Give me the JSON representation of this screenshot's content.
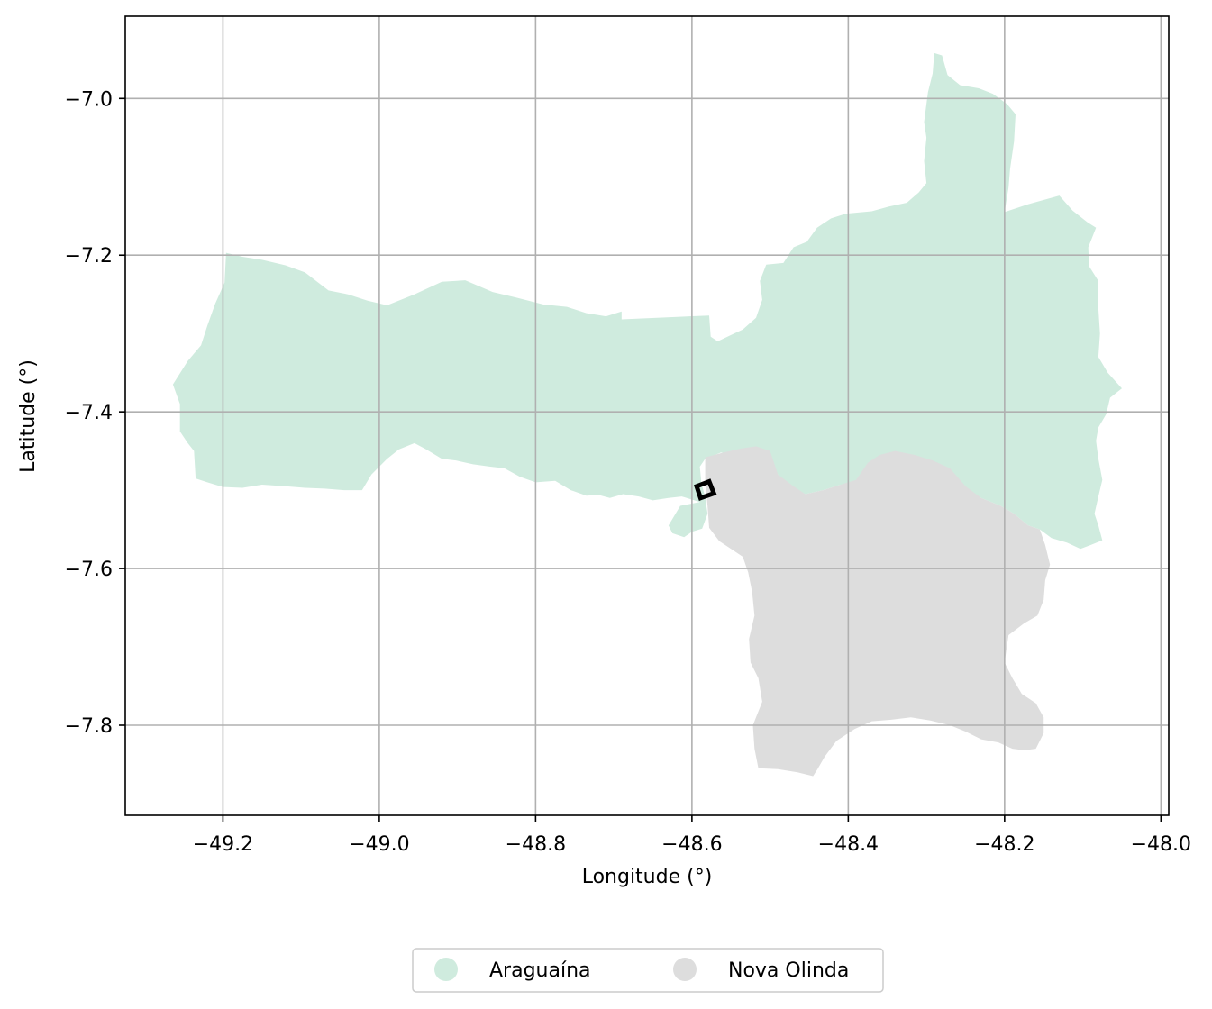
{
  "chart_data": {
    "type": "map",
    "xlabel": "Longitude (°)",
    "ylabel": "Latitude (°)",
    "xlim": [
      -49.325,
      -47.99
    ],
    "ylim": [
      -7.915,
      -6.895
    ],
    "grid": true,
    "x_ticks": [
      -49.2,
      -49.0,
      -48.8,
      -48.6,
      -48.4,
      -48.2,
      -48.0
    ],
    "x_tick_labels": [
      "−49.2",
      "−49.0",
      "−48.8",
      "−48.6",
      "−48.4",
      "−48.2",
      "−48.0"
    ],
    "y_ticks": [
      -7.0,
      -7.2,
      -7.4,
      -7.6,
      -7.8
    ],
    "y_tick_labels": [
      "−7.0",
      "−7.2",
      "−7.4",
      "−7.6",
      "−7.8"
    ],
    "legend_placement": "bottom-center",
    "regions": [
      {
        "name": "Araguaína",
        "color": "#cfebde",
        "polygon": [
          [
            -49.264,
            -7.365
          ],
          [
            -49.245,
            -7.335
          ],
          [
            -49.228,
            -7.315
          ],
          [
            -49.22,
            -7.29
          ],
          [
            -49.21,
            -7.262
          ],
          [
            -49.198,
            -7.235
          ],
          [
            -49.196,
            -7.197
          ],
          [
            -49.175,
            -7.202
          ],
          [
            -49.15,
            -7.206
          ],
          [
            -49.12,
            -7.213
          ],
          [
            -49.095,
            -7.222
          ],
          [
            -49.065,
            -7.245
          ],
          [
            -49.04,
            -7.25
          ],
          [
            -49.015,
            -7.258
          ],
          [
            -48.99,
            -7.264
          ],
          [
            -48.955,
            -7.25
          ],
          [
            -48.92,
            -7.234
          ],
          [
            -48.89,
            -7.232
          ],
          [
            -48.855,
            -7.247
          ],
          [
            -48.825,
            -7.254
          ],
          [
            -48.79,
            -7.263
          ],
          [
            -48.76,
            -7.266
          ],
          [
            -48.735,
            -7.274
          ],
          [
            -48.71,
            -7.278
          ],
          [
            -48.69,
            -7.272
          ],
          [
            -48.69,
            -7.282
          ],
          [
            -48.578,
            -7.277
          ],
          [
            -48.576,
            -7.304
          ],
          [
            -48.567,
            -7.31
          ],
          [
            -48.55,
            -7.302
          ],
          [
            -48.535,
            -7.295
          ],
          [
            -48.518,
            -7.28
          ],
          [
            -48.51,
            -7.257
          ],
          [
            -48.513,
            -7.233
          ],
          [
            -48.505,
            -7.212
          ],
          [
            -48.483,
            -7.21
          ],
          [
            -48.47,
            -7.19
          ],
          [
            -48.453,
            -7.183
          ],
          [
            -48.44,
            -7.165
          ],
          [
            -48.422,
            -7.153
          ],
          [
            -48.403,
            -7.147
          ],
          [
            -48.37,
            -7.144
          ],
          [
            -48.348,
            -7.138
          ],
          [
            -48.325,
            -7.133
          ],
          [
            -48.31,
            -7.12
          ],
          [
            -48.3,
            -7.108
          ],
          [
            -48.303,
            -7.08
          ],
          [
            -48.3,
            -7.05
          ],
          [
            -48.303,
            -7.03
          ],
          [
            -48.298,
            -6.992
          ],
          [
            -48.292,
            -6.968
          ],
          [
            -48.29,
            -6.942
          ],
          [
            -48.28,
            -6.945
          ],
          [
            -48.273,
            -6.97
          ],
          [
            -48.257,
            -6.983
          ],
          [
            -48.233,
            -6.987
          ],
          [
            -48.215,
            -6.994
          ],
          [
            -48.197,
            -7.007
          ],
          [
            -48.186,
            -7.02
          ],
          [
            -48.188,
            -7.055
          ],
          [
            -48.193,
            -7.09
          ],
          [
            -48.195,
            -7.114
          ],
          [
            -48.2,
            -7.145
          ],
          [
            -48.17,
            -7.135
          ],
          [
            -48.13,
            -7.124
          ],
          [
            -48.113,
            -7.143
          ],
          [
            -48.094,
            -7.158
          ],
          [
            -48.083,
            -7.165
          ],
          [
            -48.093,
            -7.19
          ],
          [
            -48.092,
            -7.214
          ],
          [
            -48.08,
            -7.233
          ],
          [
            -48.08,
            -7.268
          ],
          [
            -48.078,
            -7.3
          ],
          [
            -48.08,
            -7.33
          ],
          [
            -48.068,
            -7.35
          ],
          [
            -48.05,
            -7.37
          ],
          [
            -48.065,
            -7.382
          ],
          [
            -48.07,
            -7.403
          ],
          [
            -48.08,
            -7.42
          ],
          [
            -48.083,
            -7.437
          ],
          [
            -48.08,
            -7.46
          ],
          [
            -48.075,
            -7.487
          ],
          [
            -48.08,
            -7.508
          ],
          [
            -48.085,
            -7.53
          ],
          [
            -48.08,
            -7.545
          ],
          [
            -48.075,
            -7.564
          ],
          [
            -48.09,
            -7.57
          ],
          [
            -48.103,
            -7.575
          ],
          [
            -48.12,
            -7.567
          ],
          [
            -48.14,
            -7.561
          ],
          [
            -48.155,
            -7.55
          ],
          [
            -48.17,
            -7.545
          ],
          [
            -48.188,
            -7.53
          ],
          [
            -48.205,
            -7.52
          ],
          [
            -48.23,
            -7.51
          ],
          [
            -48.252,
            -7.497
          ],
          [
            -48.272,
            -7.473
          ],
          [
            -48.292,
            -7.467
          ],
          [
            -48.315,
            -7.465
          ],
          [
            -48.34,
            -7.47
          ],
          [
            -48.362,
            -7.476
          ],
          [
            -48.375,
            -7.495
          ],
          [
            -48.39,
            -7.495
          ],
          [
            -48.41,
            -7.493
          ],
          [
            -48.432,
            -7.5
          ],
          [
            -48.455,
            -7.505
          ],
          [
            -48.47,
            -7.497
          ],
          [
            -48.48,
            -7.49
          ],
          [
            -48.49,
            -7.48
          ],
          [
            -48.5,
            -7.47
          ],
          [
            -48.52,
            -7.458
          ],
          [
            -48.545,
            -7.453
          ],
          [
            -48.563,
            -7.452
          ],
          [
            -48.583,
            -7.46
          ],
          [
            -48.59,
            -7.47
          ],
          [
            -48.588,
            -7.49
          ],
          [
            -48.583,
            -7.51
          ],
          [
            -48.58,
            -7.53
          ],
          [
            -48.587,
            -7.549
          ],
          [
            -48.6,
            -7.553
          ],
          [
            -48.61,
            -7.56
          ],
          [
            -48.625,
            -7.555
          ],
          [
            -48.63,
            -7.545
          ],
          [
            -48.615,
            -7.52
          ],
          [
            -48.59,
            -7.515
          ],
          [
            -48.613,
            -7.508
          ],
          [
            -48.63,
            -7.51
          ],
          [
            -48.65,
            -7.513
          ],
          [
            -48.668,
            -7.508
          ],
          [
            -48.688,
            -7.505
          ],
          [
            -48.705,
            -7.51
          ],
          [
            -48.72,
            -7.506
          ],
          [
            -48.735,
            -7.507
          ],
          [
            -48.755,
            -7.5
          ],
          [
            -48.775,
            -7.488
          ],
          [
            -48.8,
            -7.49
          ],
          [
            -48.82,
            -7.483
          ],
          [
            -48.84,
            -7.472
          ],
          [
            -48.858,
            -7.47
          ],
          [
            -48.88,
            -7.467
          ],
          [
            -48.902,
            -7.462
          ],
          [
            -48.92,
            -7.46
          ],
          [
            -48.94,
            -7.448
          ],
          [
            -48.955,
            -7.44
          ],
          [
            -48.975,
            -7.448
          ],
          [
            -48.99,
            -7.46
          ],
          [
            -49.01,
            -7.48
          ],
          [
            -49.022,
            -7.5
          ],
          [
            -49.045,
            -7.5
          ],
          [
            -49.07,
            -7.498
          ],
          [
            -49.095,
            -7.497
          ],
          [
            -49.12,
            -7.495
          ],
          [
            -49.15,
            -7.493
          ],
          [
            -49.175,
            -7.497
          ],
          [
            -49.2,
            -7.496
          ],
          [
            -49.22,
            -7.49
          ],
          [
            -49.235,
            -7.485
          ],
          [
            -49.237,
            -7.45
          ],
          [
            -49.245,
            -7.44
          ],
          [
            -49.255,
            -7.425
          ],
          [
            -49.255,
            -7.39
          ]
        ]
      },
      {
        "name": "Nova Olinda",
        "color": "#dddddd",
        "polygon": [
          [
            -48.583,
            -7.458
          ],
          [
            -48.56,
            -7.452
          ],
          [
            -48.538,
            -7.447
          ],
          [
            -48.518,
            -7.444
          ],
          [
            -48.5,
            -7.45
          ],
          [
            -48.49,
            -7.48
          ],
          [
            -48.47,
            -7.495
          ],
          [
            -48.455,
            -7.505
          ],
          [
            -48.432,
            -7.5
          ],
          [
            -48.41,
            -7.493
          ],
          [
            -48.39,
            -7.487
          ],
          [
            -48.375,
            -7.465
          ],
          [
            -48.36,
            -7.455
          ],
          [
            -48.34,
            -7.45
          ],
          [
            -48.315,
            -7.455
          ],
          [
            -48.292,
            -7.462
          ],
          [
            -48.27,
            -7.472
          ],
          [
            -48.25,
            -7.495
          ],
          [
            -48.23,
            -7.51
          ],
          [
            -48.205,
            -7.52
          ],
          [
            -48.188,
            -7.53
          ],
          [
            -48.17,
            -7.545
          ],
          [
            -48.155,
            -7.55
          ],
          [
            -48.148,
            -7.57
          ],
          [
            -48.142,
            -7.595
          ],
          [
            -48.148,
            -7.615
          ],
          [
            -48.15,
            -7.64
          ],
          [
            -48.158,
            -7.66
          ],
          [
            -48.175,
            -7.67
          ],
          [
            -48.195,
            -7.685
          ],
          [
            -48.2,
            -7.72
          ],
          [
            -48.19,
            -7.74
          ],
          [
            -48.178,
            -7.76
          ],
          [
            -48.16,
            -7.772
          ],
          [
            -48.15,
            -7.79
          ],
          [
            -48.15,
            -7.81
          ],
          [
            -48.16,
            -7.83
          ],
          [
            -48.175,
            -7.832
          ],
          [
            -48.19,
            -7.83
          ],
          [
            -48.208,
            -7.822
          ],
          [
            -48.23,
            -7.818
          ],
          [
            -48.25,
            -7.808
          ],
          [
            -48.27,
            -7.8
          ],
          [
            -48.295,
            -7.794
          ],
          [
            -48.32,
            -7.79
          ],
          [
            -48.345,
            -7.793
          ],
          [
            -48.37,
            -7.795
          ],
          [
            -48.392,
            -7.805
          ],
          [
            -48.415,
            -7.82
          ],
          [
            -48.43,
            -7.84
          ],
          [
            -48.44,
            -7.857
          ],
          [
            -48.445,
            -7.865
          ],
          [
            -48.465,
            -7.86
          ],
          [
            -48.49,
            -7.856
          ],
          [
            -48.515,
            -7.855
          ],
          [
            -48.52,
            -7.83
          ],
          [
            -48.522,
            -7.8
          ],
          [
            -48.51,
            -7.77
          ],
          [
            -48.515,
            -7.74
          ],
          [
            -48.525,
            -7.72
          ],
          [
            -48.527,
            -7.69
          ],
          [
            -48.52,
            -7.66
          ],
          [
            -48.523,
            -7.63
          ],
          [
            -48.528,
            -7.605
          ],
          [
            -48.535,
            -7.585
          ],
          [
            -48.55,
            -7.575
          ],
          [
            -48.565,
            -7.565
          ],
          [
            -48.578,
            -7.548
          ],
          [
            -48.58,
            -7.52
          ],
          [
            -48.583,
            -7.49
          ]
        ]
      }
    ],
    "marker": {
      "shape": "rectangle-outline",
      "color": "#000000",
      "corners": [
        [
          -48.594,
          -7.495
        ],
        [
          -48.578,
          -7.489
        ],
        [
          -48.572,
          -7.504
        ],
        [
          -48.589,
          -7.51
        ]
      ]
    },
    "legend": [
      {
        "label": "Araguaína",
        "color": "#cfebde"
      },
      {
        "label": "Nova Olinda",
        "color": "#dddddd"
      }
    ]
  }
}
